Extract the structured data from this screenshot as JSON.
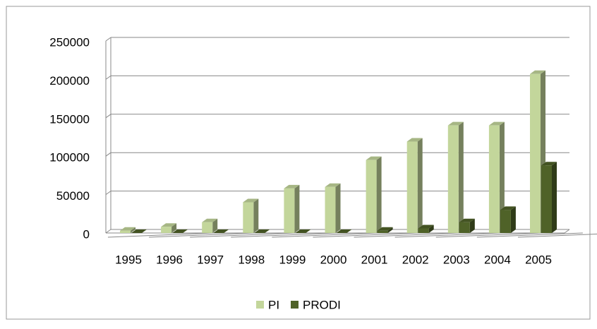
{
  "chart_data": {
    "type": "bar3d",
    "categories": [
      "1995",
      "1996",
      "1997",
      "1998",
      "1999",
      "2000",
      "2001",
      "2002",
      "2003",
      "2004",
      "2005"
    ],
    "series": [
      {
        "name": "PI",
        "color": "#c3d69b",
        "values": [
          3000,
          8000,
          14000,
          40000,
          58000,
          60000,
          95000,
          119000,
          140000,
          140000,
          207000
        ]
      },
      {
        "name": "PRODI",
        "color": "#4f6228",
        "values": [
          0,
          0,
          0,
          0,
          0,
          0,
          3000,
          6000,
          14000,
          30000,
          88000
        ]
      }
    ],
    "ylim": [
      0,
      250000
    ],
    "yticks": [
      0,
      50000,
      100000,
      150000,
      200000,
      250000
    ],
    "grid": true,
    "legend": "bottom"
  }
}
